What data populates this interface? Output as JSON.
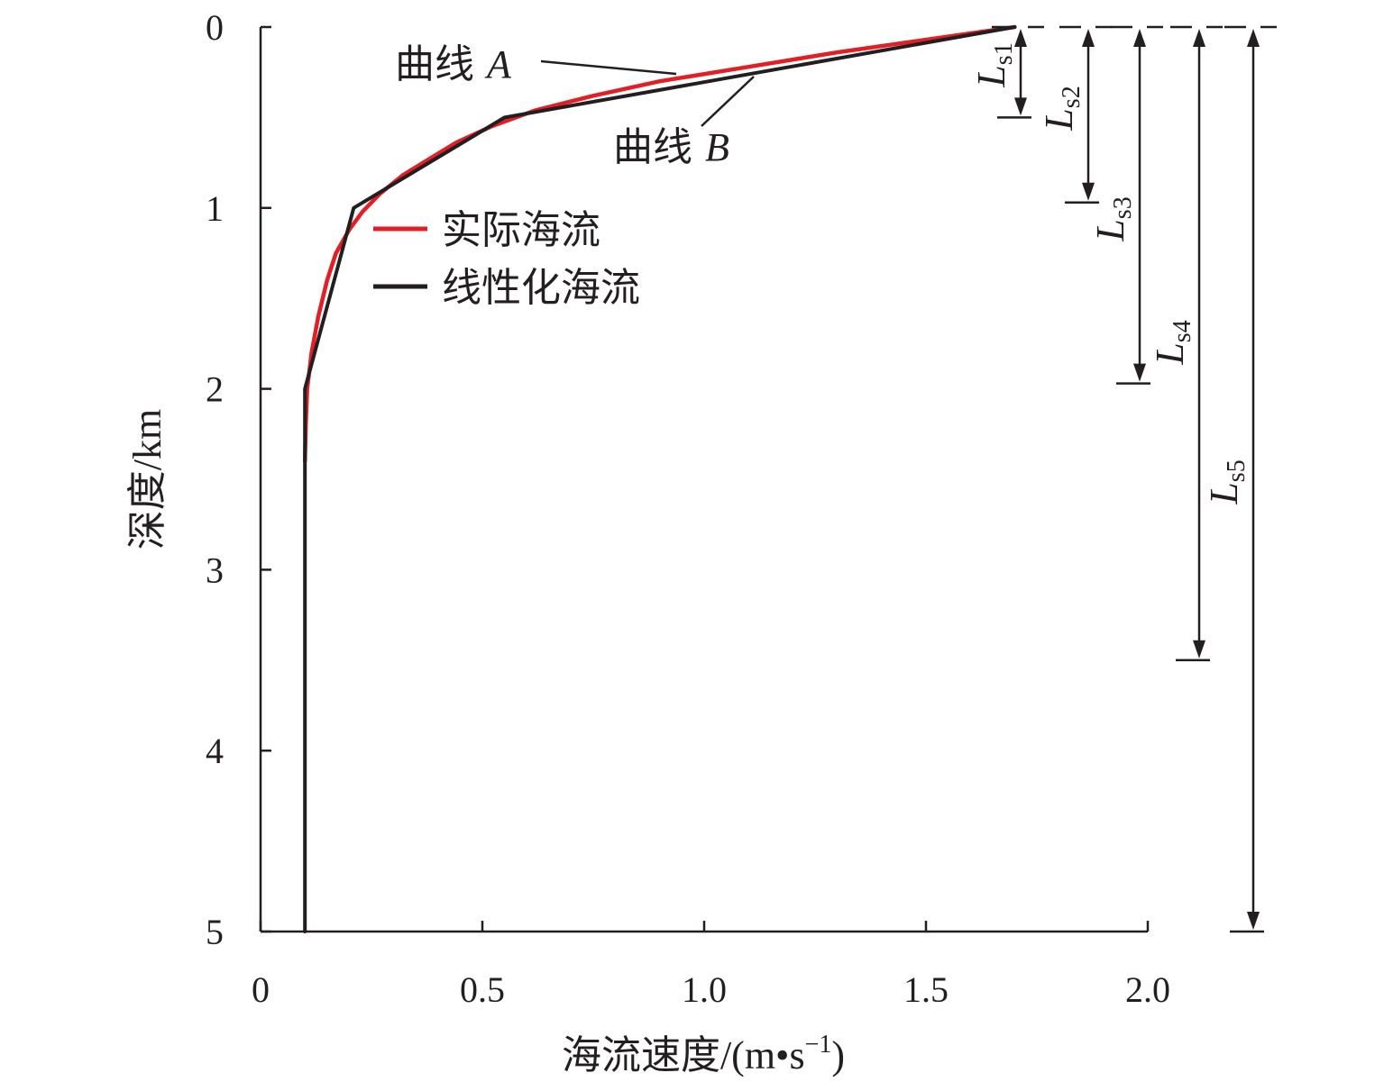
{
  "chart_data": {
    "type": "line",
    "title": "",
    "xlabel": "海流速度/(m•s",
    "xlabel_sup": "−1",
    "xlabel_end": ")",
    "ylabel": "深度/km",
    "xlim": [
      0,
      2.0
    ],
    "ylim": [
      0,
      5
    ],
    "y_inverted": true,
    "x_ticks": [
      0,
      0.5,
      1.0,
      1.5,
      2.0
    ],
    "x_tick_labels": [
      "0",
      "0.5",
      "1.0",
      "1.5",
      "2.0"
    ],
    "y_ticks": [
      0,
      1,
      2,
      3,
      4,
      5
    ],
    "y_tick_labels": [
      "0",
      "1",
      "2",
      "3",
      "4",
      "5"
    ],
    "grid": false,
    "legend_position": "upper-center",
    "series": [
      {
        "name": "实际海流",
        "color": "#e31e24",
        "points": [
          [
            1.7,
            0
          ],
          [
            1.5,
            0.07
          ],
          [
            1.3,
            0.14
          ],
          [
            1.1,
            0.22
          ],
          [
            0.9,
            0.3
          ],
          [
            0.75,
            0.38
          ],
          [
            0.62,
            0.46
          ],
          [
            0.52,
            0.55
          ],
          [
            0.44,
            0.64
          ],
          [
            0.38,
            0.73
          ],
          [
            0.32,
            0.82
          ],
          [
            0.27,
            0.92
          ],
          [
            0.23,
            1.02
          ],
          [
            0.2,
            1.12
          ],
          [
            0.17,
            1.25
          ],
          [
            0.15,
            1.4
          ],
          [
            0.13,
            1.6
          ],
          [
            0.115,
            1.8
          ],
          [
            0.105,
            2.0
          ],
          [
            0.102,
            2.2
          ],
          [
            0.1,
            2.4
          ]
        ]
      },
      {
        "name": "线性化海流",
        "color": "#231f20",
        "points": [
          [
            1.7,
            0
          ],
          [
            0.55,
            0.5
          ],
          [
            0.21,
            1.0
          ],
          [
            0.1,
            2.0
          ],
          [
            0.1,
            5.0
          ]
        ]
      }
    ],
    "annotations": {
      "curve_a": {
        "text": "曲线",
        "letter": "A"
      },
      "curve_b": {
        "text": "曲线",
        "letter": "B"
      }
    },
    "depth_markers": [
      {
        "label": "L",
        "sub": "s1",
        "depth": 0.5
      },
      {
        "label": "L",
        "sub": "s2",
        "depth": 0.97
      },
      {
        "label": "L",
        "sub": "s3",
        "depth": 1.97
      },
      {
        "label": "L",
        "sub": "s4",
        "depth": 3.5
      },
      {
        "label": "L",
        "sub": "s5",
        "depth": 5.0
      }
    ]
  }
}
